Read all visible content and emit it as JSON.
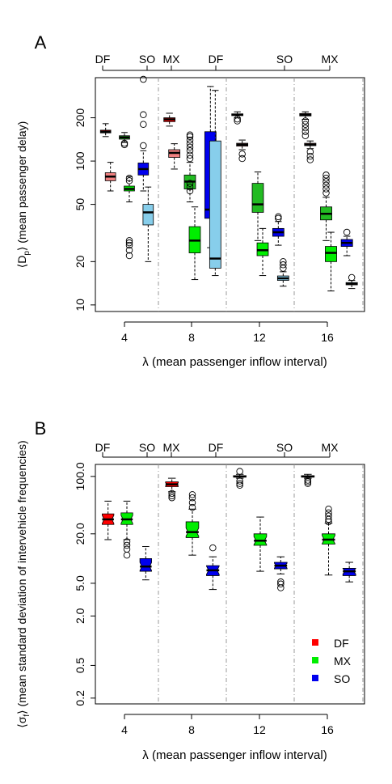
{
  "colors": {
    "DF": "#ff0000",
    "MX": "#00ee00",
    "SO": "#0000ee",
    "DF_light": "#f08080",
    "MX_dark": "#22bb22",
    "SO_light": "#87ceeb"
  },
  "chart_data": [
    {
      "panel_label": "A",
      "type": "boxplot",
      "ylabel": "⟨D_p⟩ (mean passenger delay)",
      "ylabel_main": "⟨D",
      "ylabel_sub": "p",
      "ylabel_rest": "⟩ (mean passenger delay)",
      "xlabel": "λ (mean passenger inflow interval)",
      "y_scale": "log",
      "ylim": [
        9,
        380
      ],
      "y_ticks": [
        10,
        20,
        50,
        100,
        200
      ],
      "x_ticks": [
        4,
        8,
        12,
        16
      ],
      "top_labels": [
        "DF",
        "SO",
        "MX",
        "DF",
        "SO",
        "MX"
      ],
      "groups": [
        {
          "lambda": 4,
          "boxes": [
            {
              "series": "DF",
              "color": "#ff0000",
              "min": 148,
              "q1": 157,
              "median": 160,
              "q3": 164,
              "max": 182,
              "outliers": []
            },
            {
              "series": "DF_light",
              "color": "#f08080",
              "min": 62,
              "q1": 73,
              "median": 78,
              "q3": 83,
              "max": 98,
              "outliers": []
            },
            {
              "series": "MX_dark",
              "color": "#22bb22",
              "min": 135,
              "q1": 142,
              "median": 146,
              "q3": 150,
              "max": 158,
              "outliers": [
                130,
                133
              ]
            },
            {
              "series": "MX",
              "color": "#00ee00",
              "min": 52,
              "q1": 62,
              "median": 64,
              "q3": 67,
              "max": 78,
              "outliers": [
                73,
                76,
                22,
                24,
                26,
                27,
                28
              ]
            },
            {
              "series": "SO",
              "color": "#0000ee",
              "min": 62,
              "q1": 80,
              "median": 88,
              "q3": 97,
              "max": 118,
              "outliers": [
                128,
                180,
                210,
                370
              ]
            },
            {
              "series": "SO_light",
              "color": "#87ceeb",
              "min": 20,
              "q1": 36,
              "median": 44,
              "q3": 50,
              "max": 66,
              "outliers": []
            }
          ]
        },
        {
          "lambda": 8,
          "boxes": [
            {
              "series": "DF",
              "color": "#ff0000",
              "min": 175,
              "q1": 188,
              "median": 195,
              "q3": 200,
              "max": 215,
              "outliers": []
            },
            {
              "series": "DF_light",
              "color": "#f08080",
              "min": 88,
              "q1": 106,
              "median": 114,
              "q3": 120,
              "max": 132,
              "outliers": []
            },
            {
              "series": "MX_dark",
              "color": "#22bb22",
              "min": 52,
              "q1": 64,
              "median": 72,
              "q3": 80,
              "max": 98,
              "outliers": [
                104,
                110,
                118,
                125,
                132,
                140,
                148,
                152,
                62,
                66,
                70
              ]
            },
            {
              "series": "MX",
              "color": "#00ee00",
              "min": 15,
              "q1": 23,
              "median": 28,
              "q3": 35,
              "max": 48,
              "outliers": []
            },
            {
              "series": "SO",
              "color": "#0000ee",
              "min": 25,
              "q1": 40,
              "median": 46,
              "q3": 160,
              "max": 330,
              "outliers": []
            },
            {
              "series": "SO_light",
              "color": "#87ceeb",
              "min": 16,
              "q1": 18,
              "median": 21,
              "q3": 138,
              "max": 310,
              "outliers": []
            }
          ]
        },
        {
          "lambda": 12,
          "boxes": [
            {
              "series": "DF",
              "color": "#ff0000",
              "min": 200,
              "q1": 207,
              "median": 210,
              "q3": 213,
              "max": 220,
              "outliers": [
                190,
                196
              ]
            },
            {
              "series": "DF_light",
              "color": "#f08080",
              "min": 120,
              "q1": 127,
              "median": 130,
              "q3": 133,
              "max": 140,
              "outliers": [
                104,
                112
              ]
            },
            {
              "series": "MX_dark",
              "color": "#22bb22",
              "min": 28,
              "q1": 44,
              "median": 50,
              "q3": 70,
              "max": 84,
              "outliers": []
            },
            {
              "series": "MX",
              "color": "#00ee00",
              "min": 16,
              "q1": 22,
              "median": 24,
              "q3": 27,
              "max": 34,
              "outliers": []
            },
            {
              "series": "SO",
              "color": "#0000ee",
              "min": 26,
              "q1": 30,
              "median": 32,
              "q3": 34,
              "max": 38,
              "outliers": [
                40,
                41
              ]
            },
            {
              "series": "SO_light",
              "color": "#87ceeb",
              "min": 13.5,
              "q1": 14.8,
              "median": 15.3,
              "q3": 15.9,
              "max": 17,
              "outliers": [
                18,
                19,
                20
              ]
            }
          ]
        },
        {
          "lambda": 16,
          "boxes": [
            {
              "series": "DF",
              "color": "#ff0000",
              "min": 195,
              "q1": 206,
              "median": 210,
              "q3": 214,
              "max": 220,
              "outliers": [
                150,
                160,
                170,
                180,
                190
              ]
            },
            {
              "series": "DF_light",
              "color": "#f08080",
              "min": 122,
              "q1": 128,
              "median": 130,
              "q3": 133,
              "max": 138,
              "outliers": [
                102,
                108,
                116
              ]
            },
            {
              "series": "MX_dark",
              "color": "#22bb22",
              "min": 28,
              "q1": 39,
              "median": 43,
              "q3": 48,
              "max": 56,
              "outliers": [
                60,
                64,
                68,
                72,
                76,
                80
              ]
            },
            {
              "series": "MX",
              "color": "#00ee00",
              "min": 12.5,
              "q1": 20,
              "median": 23,
              "q3": 25.5,
              "max": 32,
              "outliers": []
            },
            {
              "series": "SO",
              "color": "#0000ee",
              "min": 22,
              "q1": 25.5,
              "median": 27,
              "q3": 28.5,
              "max": 30,
              "outliers": [
                32
              ]
            },
            {
              "series": "SO_light",
              "color": "#87ceeb",
              "min": 13,
              "q1": 13.8,
              "median": 14,
              "q3": 14.3,
              "max": 14.8,
              "outliers": [
                15.5
              ]
            }
          ]
        }
      ]
    },
    {
      "panel_label": "B",
      "type": "boxplot",
      "ylabel": "⟨σ_f⟩ (mean standard deviation of intervehicle frequencies)",
      "ylabel_main": "⟨σ",
      "ylabel_sub": "f",
      "ylabel_rest": "⟩ (mean standard deviation of intervehicle frequencies)",
      "xlabel": "λ (mean passenger inflow interval)",
      "y_scale": "log",
      "ylim": [
        0.17,
        140
      ],
      "y_ticks": [
        0.2,
        0.5,
        2.0,
        5.0,
        20.0,
        100.0
      ],
      "y_tick_labels": [
        "0.2",
        "0.5",
        "2.0",
        "5.0",
        "20.0",
        "100.0"
      ],
      "x_ticks": [
        4,
        8,
        12,
        16
      ],
      "top_labels": [
        "DF",
        "SO",
        "MX",
        "DF",
        "SO",
        "MX"
      ],
      "legend": [
        "DF",
        "MX",
        "SO"
      ],
      "legend_position": "bottom-right",
      "groups": [
        {
          "lambda": 4,
          "boxes": [
            {
              "series": "DF",
              "color": "#ff0000",
              "min": 17,
              "q1": 26,
              "median": 30,
              "q3": 35,
              "max": 50,
              "outliers": []
            },
            {
              "series": "MX",
              "color": "#00ee00",
              "min": 17,
              "q1": 26,
              "median": 30,
              "q3": 36,
              "max": 50,
              "outliers": [
                13,
                14.5,
                16,
                11
              ]
            },
            {
              "series": "SO",
              "color": "#0000ee",
              "min": 5.5,
              "q1": 7,
              "median": 8,
              "q3": 10,
              "max": 14,
              "outliers": []
            }
          ]
        },
        {
          "lambda": 8,
          "boxes": [
            {
              "series": "DF",
              "color": "#ff0000",
              "min": 65,
              "q1": 75,
              "median": 80,
              "q3": 86,
              "max": 95,
              "outliers": [
                55,
                58,
                62
              ]
            },
            {
              "series": "MX",
              "color": "#00ee00",
              "min": 11,
              "q1": 18,
              "median": 21,
              "q3": 28,
              "max": 40,
              "outliers": [
                42,
                48,
                55,
                60
              ]
            },
            {
              "series": "SO",
              "color": "#0000ee",
              "min": 4.2,
              "q1": 6.2,
              "median": 7.2,
              "q3": 8.2,
              "max": 10.5,
              "outliers": [
                13.5
              ]
            }
          ]
        },
        {
          "lambda": 12,
          "boxes": [
            {
              "series": "DF",
              "color": "#ff0000",
              "min": 95,
              "q1": 98,
              "median": 100,
              "q3": 102,
              "max": 106,
              "outliers": [
                78,
                82,
                88,
                115
              ]
            },
            {
              "series": "MX",
              "color": "#00ee00",
              "min": 7,
              "q1": 14.5,
              "median": 16.5,
              "q3": 20,
              "max": 32,
              "outliers": []
            },
            {
              "series": "SO",
              "color": "#0000ee",
              "min": 6.5,
              "q1": 7.5,
              "median": 8.2,
              "q3": 9,
              "max": 10.5,
              "outliers": [
                5.2,
                4.9,
                4.4
              ]
            }
          ]
        },
        {
          "lambda": 16,
          "boxes": [
            {
              "series": "DF",
              "color": "#ff0000",
              "min": 95,
              "q1": 98,
              "median": 100,
              "q3": 102,
              "max": 106,
              "outliers": [
                82,
                86,
                90
              ]
            },
            {
              "series": "MX",
              "color": "#00ee00",
              "min": 6.3,
              "q1": 15,
              "median": 17,
              "q3": 20,
              "max": 27,
              "outliers": [
                28,
                30,
                33,
                36,
                40
              ]
            },
            {
              "series": "SO",
              "color": "#0000ee",
              "min": 5.2,
              "q1": 6.2,
              "median": 7,
              "q3": 7.6,
              "max": 9,
              "outliers": []
            }
          ]
        }
      ]
    }
  ]
}
